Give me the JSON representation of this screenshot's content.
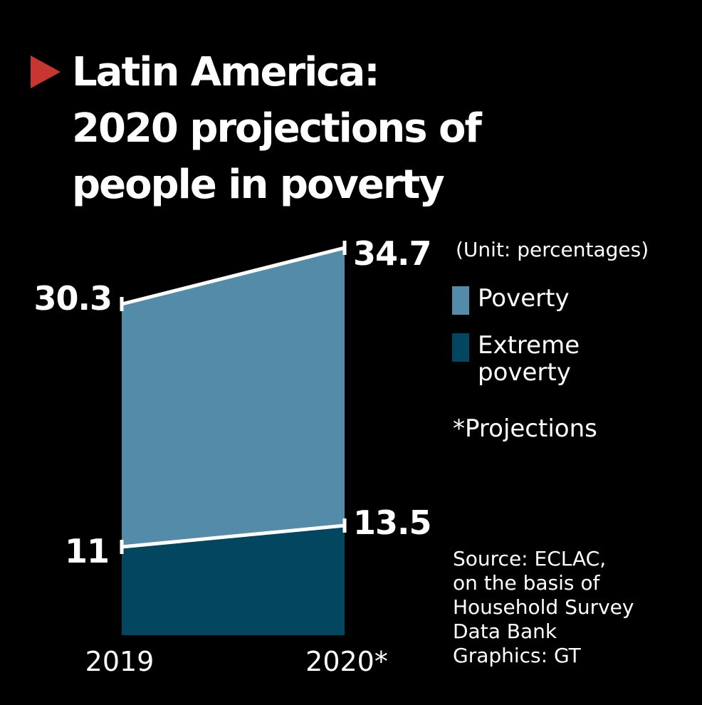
{
  "title": {
    "lines": [
      "Latin America:",
      "2020 projections of",
      "people in poverty"
    ],
    "marker_color": "#c83632"
  },
  "unit_note": "(Unit: percentages)",
  "legend": [
    {
      "label": "Poverty",
      "color": "#548ba8"
    },
    {
      "label": "Extreme",
      "label2": "poverty",
      "color": "#02465f"
    }
  ],
  "projection_note": "*Projections",
  "source": {
    "lines": [
      "Source: ECLAC,",
      "on the basis of",
      "Household Survey",
      "Data Bank",
      "Graphics: GT"
    ]
  },
  "chart_data": {
    "type": "area",
    "title": "Latin America: 2020 projections of people in poverty",
    "xlabel": "",
    "ylabel": "Percentage",
    "unit": "percentages",
    "categories": [
      "2019",
      "2020*"
    ],
    "series": [
      {
        "name": "Poverty",
        "values": [
          30.3,
          34.7
        ],
        "labels": [
          "30.3",
          "34.7"
        ],
        "color": "#548ba8"
      },
      {
        "name": "Extreme poverty",
        "values": [
          11,
          13.5
        ],
        "labels": [
          "11",
          "13.5"
        ],
        "color": "#02465f"
      }
    ],
    "grid": false,
    "legend_position": "right",
    "notes": [
      "2020 values are projections"
    ]
  }
}
